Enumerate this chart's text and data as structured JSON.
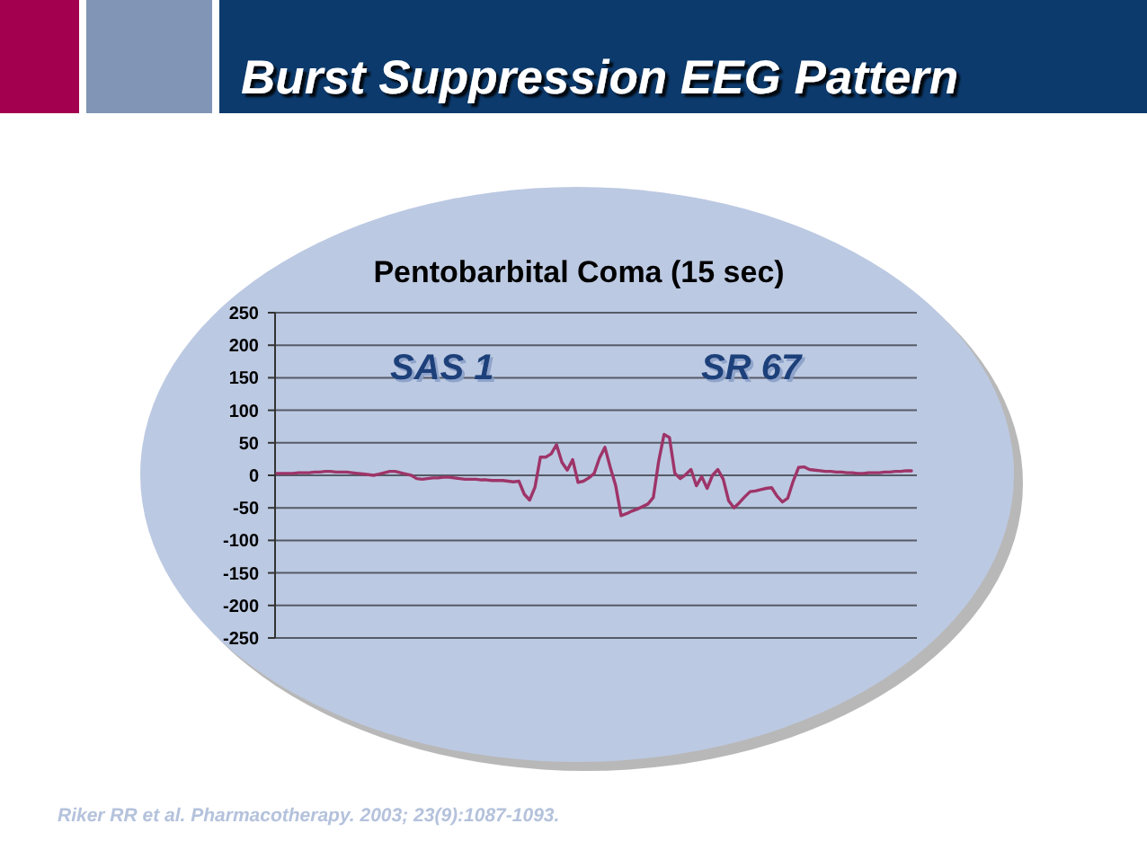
{
  "chart_data": {
    "type": "line",
    "title": "Burst Suppression EEG Pattern",
    "subtitle": "Pentobarbital Coma (15 sec)",
    "annotations": [
      "SAS 1",
      "SR 67",
      "Riker RR et al. Pharmacotherapy. 2003; 23(9):1087-1093."
    ],
    "categories": [
      null,
      null,
      null,
      null,
      null,
      null,
      null,
      null,
      null,
      null,
      null,
      null,
      null,
      null,
      null,
      null,
      null,
      null,
      null,
      null,
      null,
      null,
      null,
      null,
      null,
      null,
      null,
      null,
      null,
      null,
      null,
      null,
      null,
      null,
      null,
      null,
      null,
      null,
      null,
      null,
      null,
      null,
      null,
      null,
      null,
      null,
      null,
      null,
      null,
      null,
      null,
      null,
      null,
      null,
      null,
      null,
      null,
      null,
      null,
      null,
      null,
      null,
      null,
      null,
      null,
      null,
      null,
      null,
      null,
      null,
      null,
      null,
      null,
      null,
      null,
      null,
      null,
      null,
      null,
      null,
      null,
      null,
      null,
      null,
      null,
      null,
      null,
      null,
      null,
      null,
      null,
      null,
      null,
      null,
      null,
      null,
      null,
      null,
      null,
      null,
      null,
      null,
      null,
      null,
      null,
      null,
      null,
      null,
      null,
      null,
      null,
      null,
      null,
      null,
      null,
      null,
      null,
      null,
      null
    ],
    "values": [
      3,
      3,
      3,
      3,
      4,
      4,
      4,
      5,
      5,
      6,
      6,
      5,
      5,
      5,
      4,
      3,
      2,
      1,
      0,
      2,
      4,
      6,
      6,
      4,
      2,
      0,
      -5,
      -6,
      -5,
      -4,
      -4,
      -3,
      -3,
      -4,
      -5,
      -6,
      -6,
      -6,
      -7,
      -7,
      -8,
      -8,
      -8,
      -9,
      -10,
      -9,
      -29,
      -38,
      -18,
      28,
      28,
      33,
      47,
      20,
      8,
      24,
      -11,
      -9,
      -4,
      3,
      27,
      43,
      12,
      -16,
      -62,
      -59,
      -55,
      -52,
      -48,
      -44,
      -34,
      22,
      63,
      58,
      3,
      -5,
      1,
      9,
      -16,
      -2,
      -20,
      0,
      9,
      -6,
      -39,
      -50,
      -42,
      -33,
      -25,
      -24,
      -22,
      -20,
      -19,
      -32,
      -41,
      -35,
      -9,
      12,
      13,
      9,
      8,
      7,
      6,
      6,
      5,
      5,
      4,
      4,
      3,
      3,
      4,
      4,
      4,
      5,
      5,
      6,
      6,
      7,
      7
    ],
    "color": "#9e3468",
    "line_style": "solid",
    "ylim": [
      -250,
      250
    ],
    "yticks": [
      -250,
      -200,
      -150,
      -100,
      -50,
      0,
      50,
      100,
      150,
      200,
      250
    ],
    "grid": "y",
    "tick_labels": "y"
  }
}
